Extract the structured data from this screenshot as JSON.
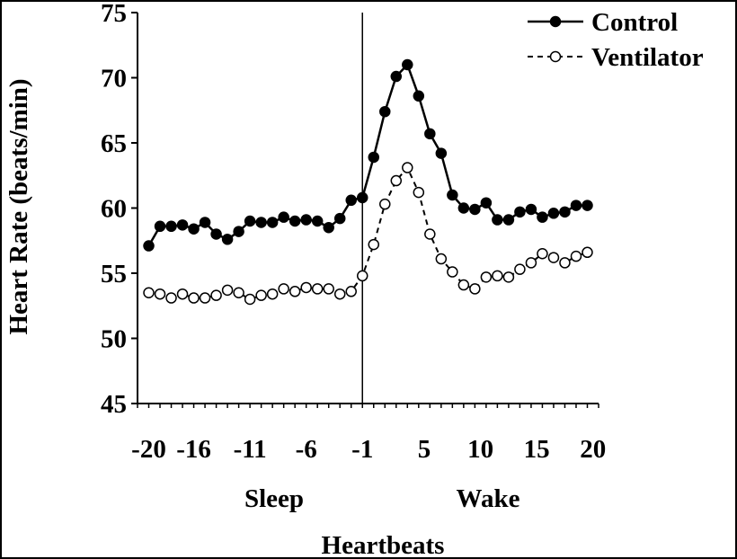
{
  "chart_data": {
    "type": "line",
    "title": "",
    "xlabel": "Heartbeats",
    "ylabel": "Heart Rate (beats/min)",
    "ylim": [
      45,
      75
    ],
    "yticks": [
      45,
      50,
      55,
      60,
      65,
      70,
      75
    ],
    "xtick_labels": [
      "-20",
      "-16",
      "-11",
      "-6",
      "-1",
      "5",
      "10",
      "15",
      "20"
    ],
    "xtick_positions": [
      -20,
      -16,
      -11,
      -6,
      -1,
      4.5,
      9.5,
      14.5,
      19.5
    ],
    "xlim": [
      -21,
      20
    ],
    "group_labels": [
      "Sleep",
      "Wake"
    ],
    "divider_x": -1,
    "grid": false,
    "legend": "top-right",
    "x": [
      -20,
      -19,
      -18,
      -17,
      -16,
      -15,
      -14,
      -13,
      -12,
      -11,
      -10,
      -9,
      -8,
      -7,
      -6,
      -5,
      -4,
      -3,
      -2,
      -1,
      0,
      1,
      2,
      3,
      4,
      5,
      6,
      7,
      8,
      9,
      10,
      11,
      12,
      13,
      14,
      15,
      16,
      17,
      18,
      19
    ],
    "series": [
      {
        "name": "Control",
        "style": "solid-filled",
        "color": "#000000",
        "values": [
          57.1,
          58.6,
          58.6,
          58.7,
          58.4,
          58.9,
          58.0,
          57.6,
          58.2,
          59.0,
          58.9,
          58.9,
          59.3,
          59.0,
          59.1,
          59.0,
          58.5,
          59.2,
          60.6,
          60.8,
          63.9,
          67.4,
          70.1,
          71.0,
          68.6,
          65.7,
          64.2,
          61.0,
          60.0,
          59.9,
          60.4,
          59.1,
          59.1,
          59.7,
          59.9,
          59.3,
          59.6,
          59.7,
          60.2,
          60.2
        ]
      },
      {
        "name": "Ventilator",
        "style": "dashed-open",
        "color": "#000000",
        "values": [
          53.5,
          53.4,
          53.1,
          53.4,
          53.1,
          53.1,
          53.3,
          53.7,
          53.5,
          53.0,
          53.3,
          53.4,
          53.8,
          53.6,
          53.9,
          53.8,
          53.8,
          53.4,
          53.6,
          54.8,
          57.2,
          60.3,
          62.1,
          63.1,
          61.2,
          58.0,
          56.1,
          55.1,
          54.1,
          53.8,
          54.7,
          54.8,
          54.7,
          55.3,
          55.8,
          56.5,
          56.2,
          55.8,
          56.3,
          56.6
        ]
      }
    ]
  }
}
